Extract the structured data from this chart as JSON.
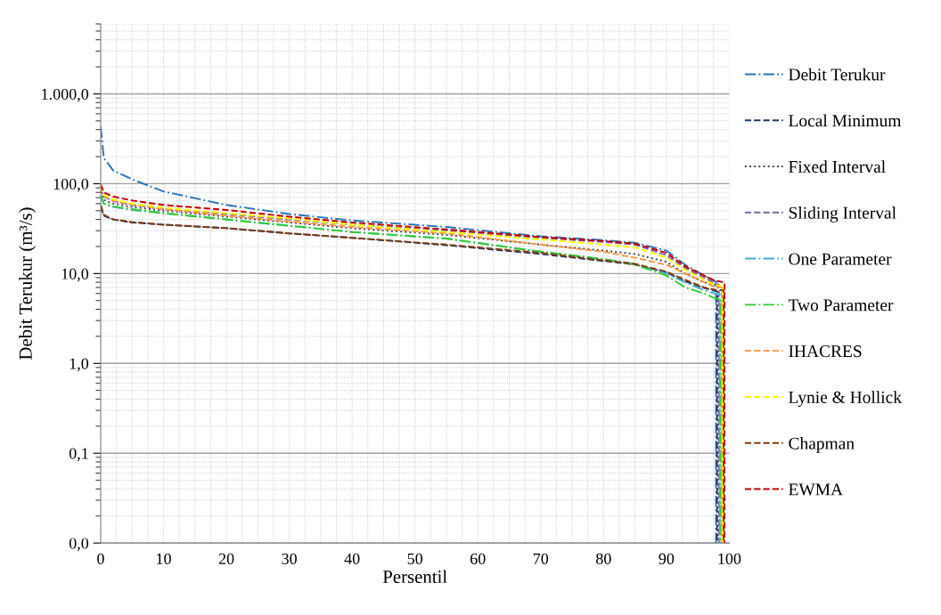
{
  "chart_data": {
    "type": "line",
    "xlabel": "Persentil",
    "ylabel": "Debit Terukur (m³/s)",
    "log": "y",
    "grid": true,
    "legend": "right",
    "marker": "none",
    "xlim": [
      0,
      100
    ],
    "xticks": [
      0,
      10,
      20,
      30,
      40,
      50,
      60,
      70,
      80,
      90,
      100
    ],
    "ylim": [
      0.01,
      6000
    ],
    "yticks": [
      {
        "value": 0.01,
        "label": "0,0"
      },
      {
        "value": 0.1,
        "label": "0,1"
      },
      {
        "value": 1,
        "label": "1,0"
      },
      {
        "value": 10,
        "label": "10,0"
      },
      {
        "value": 100,
        "label": "100,0"
      },
      {
        "value": 1000,
        "label": "1.000,0"
      }
    ],
    "series": [
      {
        "name": "Debit Terukur",
        "color": "#2e75b6",
        "line_style": "dashdot",
        "x": [
          0,
          0.5,
          2,
          5,
          10,
          20,
          30,
          40,
          55,
          70,
          80,
          85,
          90,
          93,
          96,
          97.7,
          97.9,
          97.9
        ],
        "values": [
          430,
          194,
          140,
          112,
          82,
          58,
          46,
          39,
          33,
          26,
          23.5,
          22,
          18,
          12.5,
          9.5,
          8.3,
          8,
          0.01
        ]
      },
      {
        "name": "Local Minimum",
        "color": "#1f3864",
        "line_style": "dashed",
        "x": [
          0,
          0.5,
          2,
          5,
          10,
          20,
          30,
          40,
          55,
          70,
          80,
          85,
          90,
          93,
          96,
          97.7,
          98.05,
          98.05
        ],
        "values": [
          55,
          44,
          40,
          37,
          35,
          32,
          28,
          25,
          20.7,
          16.5,
          13.8,
          12.6,
          10.3,
          8.2,
          6.9,
          6.4,
          6.3,
          0.01
        ]
      },
      {
        "name": "Fixed Interval",
        "color": "#404040",
        "line_style": "dotted",
        "x": [
          0,
          0.5,
          2,
          5,
          10,
          20,
          30,
          40,
          55,
          70,
          80,
          85,
          90,
          93,
          96,
          97.7,
          98.2,
          98.2
        ],
        "values": [
          82,
          66,
          60,
          55,
          50,
          43,
          37,
          32,
          27,
          21,
          18,
          16.5,
          13.5,
          10,
          8,
          7.5,
          7.3,
          0.01
        ]
      },
      {
        "name": "Sliding Interval",
        "color": "#8064a2",
        "line_style": "dashed",
        "x": [
          0,
          0.5,
          2,
          5,
          10,
          20,
          30,
          40,
          55,
          70,
          80,
          85,
          90,
          93,
          96,
          97.7,
          98.35,
          98.35
        ],
        "values": [
          90,
          72,
          64,
          58,
          52,
          46,
          40,
          35,
          30,
          25,
          22.5,
          21,
          16,
          11.5,
          9,
          7.8,
          7.5,
          0.01
        ]
      },
      {
        "name": "One Parameter",
        "color": "#4bacc6",
        "line_style": "dashdot",
        "x": [
          0,
          0.5,
          2,
          5,
          10,
          20,
          30,
          40,
          55,
          70,
          80,
          85,
          90,
          93,
          96,
          97.7,
          98.5,
          98.5
        ],
        "values": [
          75,
          60,
          55,
          51,
          47,
          40,
          34,
          29,
          24.5,
          17.5,
          14.5,
          12.8,
          10,
          8,
          6.5,
          6,
          5.8,
          0.01
        ]
      },
      {
        "name": "Two Parameter",
        "color": "#33cc33",
        "line_style": "dashdot",
        "x": [
          0,
          0.5,
          2,
          5,
          10,
          20,
          30,
          40,
          55,
          70,
          80,
          85,
          90,
          93,
          96,
          97.7,
          98.65,
          98.65
        ],
        "values": [
          75,
          60,
          56,
          52,
          47,
          40,
          34,
          29,
          24.5,
          17.5,
          14.5,
          12.6,
          9.5,
          7,
          6,
          5.3,
          5.2,
          0.01
        ]
      },
      {
        "name": "IHACRES",
        "color": "#f79646",
        "line_style": "dashed",
        "x": [
          0,
          0.5,
          2,
          5,
          10,
          20,
          30,
          40,
          55,
          70,
          80,
          85,
          90,
          93,
          96,
          97.7,
          98.8,
          98.8
        ],
        "values": [
          95,
          74,
          65,
          59,
          52,
          44,
          38,
          33,
          28,
          21,
          17.5,
          15,
          12.5,
          10,
          8,
          7.1,
          7,
          0.01
        ]
      },
      {
        "name": "Lynie & Hollick",
        "color": "#ffff00",
        "line_style": "dashed",
        "x": [
          0,
          0.5,
          2,
          5,
          10,
          20,
          30,
          40,
          55,
          70,
          80,
          85,
          90,
          93,
          96,
          97.7,
          98.95,
          98.95
        ],
        "values": [
          95,
          75,
          67,
          60,
          54,
          47,
          41,
          35,
          29,
          24,
          21,
          19.5,
          15,
          11,
          8.5,
          7.5,
          7.2,
          0.01
        ]
      },
      {
        "name": "Chapman",
        "color": "#843c0c",
        "line_style": "dashed",
        "x": [
          0,
          0.5,
          2,
          5,
          10,
          20,
          30,
          40,
          55,
          70,
          80,
          85,
          90,
          93,
          96,
          97.7,
          99.1,
          99.1
        ],
        "values": [
          58,
          45,
          40,
          37.5,
          35,
          32,
          28,
          25,
          21,
          17,
          14,
          12.8,
          10.5,
          8.5,
          7,
          6.6,
          6.5,
          0.01
        ]
      },
      {
        "name": "EWMA",
        "color": "#c00000",
        "line_style": "dashed",
        "x": [
          0,
          0.5,
          2,
          5,
          10,
          20,
          30,
          40,
          55,
          70,
          80,
          85,
          90,
          93,
          96,
          97.7,
          99.25,
          99.25
        ],
        "values": [
          98,
          80,
          72,
          65,
          58,
          51,
          43,
          37,
          31,
          25.5,
          23,
          21.5,
          17,
          12,
          9.5,
          8.3,
          8,
          0.01
        ]
      }
    ]
  }
}
